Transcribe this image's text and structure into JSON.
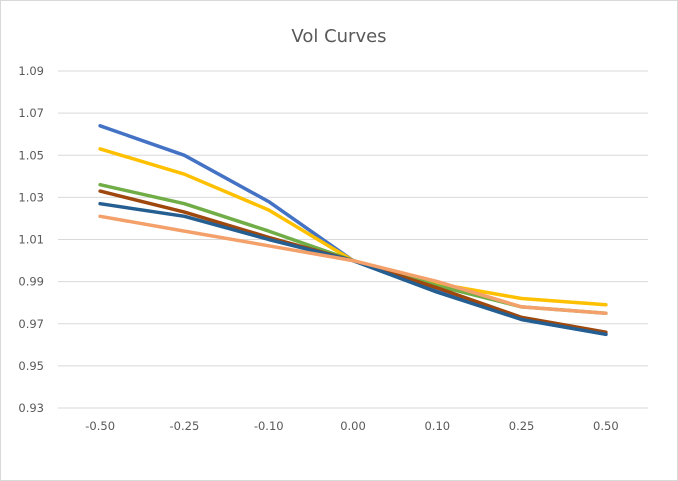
{
  "chart_data": {
    "type": "line",
    "title": "Vol Curves",
    "xlabel": "",
    "ylabel": "",
    "categories": [
      "-0.50",
      "-0.25",
      "-0.10",
      "0.00",
      "0.10",
      "0.25",
      "0.50"
    ],
    "y_ticks": [
      "0.93",
      "0.95",
      "0.97",
      "0.99",
      "1.01",
      "1.03",
      "1.05",
      "1.07",
      "1.09"
    ],
    "ylim": [
      0.93,
      1.09
    ],
    "grid": "horizontal",
    "legend": "none",
    "series": [
      {
        "color": "#4472c4",
        "values": [
          1.064,
          1.05,
          1.028,
          1.0,
          0.986,
          0.972,
          0.965
        ]
      },
      {
        "color": "#ffc000",
        "values": [
          1.053,
          1.041,
          1.024,
          1.0,
          0.989,
          0.982,
          0.979
        ]
      },
      {
        "color": "#70ad47",
        "values": [
          1.036,
          1.027,
          1.014,
          1.0,
          0.988,
          0.978,
          0.975
        ]
      },
      {
        "color": "#9e480e",
        "values": [
          1.033,
          1.023,
          1.011,
          1.0,
          0.987,
          0.973,
          0.966
        ]
      },
      {
        "color": "#255e91",
        "values": [
          1.027,
          1.021,
          1.01,
          1.0,
          0.985,
          0.972,
          0.965
        ]
      },
      {
        "color": "#f4a06a",
        "values": [
          1.021,
          1.014,
          1.007,
          1.0,
          0.99,
          0.978,
          0.975
        ]
      }
    ]
  }
}
